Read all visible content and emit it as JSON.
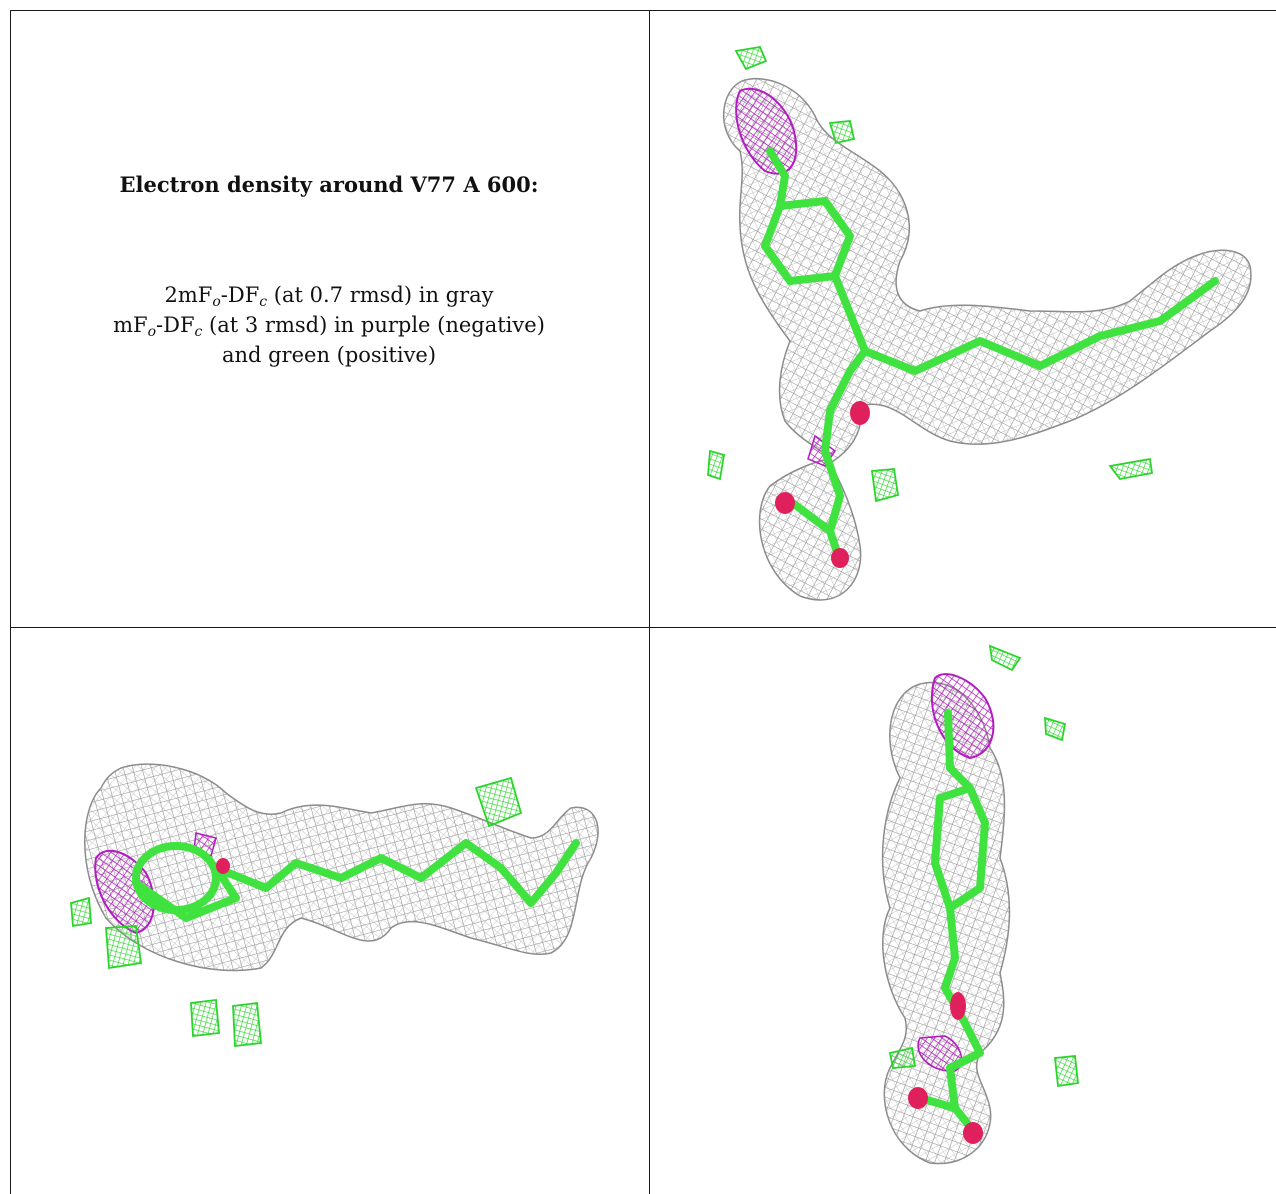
{
  "caption": {
    "title": "Electron density around V77 A 600:",
    "line1": {
      "prefix": "2mF",
      "sub1": "o",
      "mid": "-DF",
      "sub2": "c",
      "suffix": " (at 0.7 rmsd) in gray"
    },
    "line2": {
      "prefix": "mF",
      "sub1": "o",
      "mid": "-DF",
      "sub2": "c",
      "suffix": " (at 3 rmsd) in purple (negative)"
    },
    "line3": "and green (positive)"
  },
  "colors": {
    "gray_mesh": "#9a9a9a",
    "negative": "#b21cc0",
    "positive": "#2bd42b",
    "model": "#3fe23f",
    "oxygen": "#e0205c"
  },
  "panels": [
    "view-top-right",
    "view-bottom-left",
    "view-bottom-right"
  ]
}
